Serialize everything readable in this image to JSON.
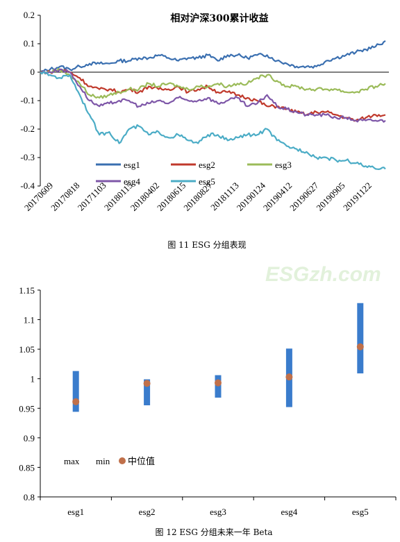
{
  "watermark": "ESGzh.com",
  "chart_data": [
    {
      "type": "line",
      "title": "相对沪深300累计收益",
      "caption": "图 11 ESG 分组表现",
      "ylim": [
        -0.4,
        0.2
      ],
      "yticks": [
        "0.2",
        "0.1",
        "0",
        "-0.1",
        "-0.2",
        "-0.3",
        "-0.4"
      ],
      "xticks": [
        "20170609",
        "20170818",
        "20171103",
        "20180115",
        "20180402",
        "20180615",
        "20180827",
        "20181113",
        "20190124",
        "20190412",
        "20190627",
        "20190905",
        "20191122"
      ],
      "grid": false,
      "legend_position": "bottom",
      "series": [
        {
          "name": "esg1",
          "color": "#3a6fb0",
          "values": [
            0.0,
            0.01,
            0.02,
            0.01,
            0.02,
            0.03,
            0.03,
            0.03,
            0.04,
            0.04,
            0.05,
            0.05,
            0.06,
            0.05,
            0.04,
            0.05,
            0.05,
            0.06,
            0.04,
            0.06,
            0.06,
            0.05,
            0.06,
            0.06,
            0.04,
            0.03,
            0.02,
            0.02,
            0.02,
            0.04,
            0.05,
            0.06,
            0.07,
            0.08,
            0.09,
            0.11
          ]
        },
        {
          "name": "esg2",
          "color": "#c0392b",
          "values": [
            0.0,
            0.0,
            0.01,
            0.0,
            -0.02,
            -0.05,
            -0.06,
            -0.06,
            -0.07,
            -0.06,
            -0.07,
            -0.05,
            -0.06,
            -0.06,
            -0.05,
            -0.07,
            -0.06,
            -0.05,
            -0.07,
            -0.07,
            -0.08,
            -0.09,
            -0.1,
            -0.12,
            -0.12,
            -0.13,
            -0.14,
            -0.15,
            -0.14,
            -0.14,
            -0.15,
            -0.16,
            -0.17,
            -0.16,
            -0.15,
            -0.15
          ]
        },
        {
          "name": "esg3",
          "color": "#9bbb59",
          "values": [
            0.0,
            0.0,
            0.01,
            -0.01,
            -0.04,
            -0.08,
            -0.09,
            -0.08,
            -0.07,
            -0.06,
            -0.06,
            -0.04,
            -0.05,
            -0.04,
            -0.05,
            -0.06,
            -0.05,
            -0.05,
            -0.04,
            -0.05,
            -0.04,
            -0.04,
            -0.02,
            -0.01,
            -0.03,
            -0.05,
            -0.05,
            -0.06,
            -0.06,
            -0.06,
            -0.06,
            -0.07,
            -0.07,
            -0.06,
            -0.05,
            -0.04
          ]
        },
        {
          "name": "esg4",
          "color": "#7e57a8",
          "values": [
            0.0,
            0.0,
            0.01,
            0.0,
            -0.05,
            -0.1,
            -0.12,
            -0.11,
            -0.1,
            -0.1,
            -0.12,
            -0.11,
            -0.1,
            -0.11,
            -0.09,
            -0.1,
            -0.1,
            -0.09,
            -0.11,
            -0.1,
            -0.09,
            -0.12,
            -0.11,
            -0.08,
            -0.12,
            -0.13,
            -0.14,
            -0.15,
            -0.15,
            -0.15,
            -0.16,
            -0.16,
            -0.17,
            -0.17,
            -0.17,
            -0.17
          ]
        },
        {
          "name": "esg5",
          "color": "#4bacc6",
          "values": [
            0.0,
            -0.01,
            -0.02,
            -0.01,
            -0.08,
            -0.15,
            -0.22,
            -0.21,
            -0.25,
            -0.2,
            -0.19,
            -0.22,
            -0.21,
            -0.23,
            -0.22,
            -0.24,
            -0.25,
            -0.22,
            -0.22,
            -0.24,
            -0.23,
            -0.22,
            -0.22,
            -0.2,
            -0.24,
            -0.26,
            -0.27,
            -0.28,
            -0.3,
            -0.3,
            -0.31,
            -0.31,
            -0.32,
            -0.33,
            -0.34,
            -0.34
          ]
        }
      ]
    },
    {
      "type": "bar",
      "caption": "图 12 ESG 分组未来一年 Beta",
      "ylim": [
        0.8,
        1.15
      ],
      "yticks": [
        "1.15",
        "1.1",
        "1.05",
        "1",
        "0.95",
        "0.9",
        "0.85",
        "0.8"
      ],
      "categories": [
        "esg1",
        "esg2",
        "esg3",
        "esg4",
        "esg5"
      ],
      "max": [
        1.013,
        0.999,
        1.006,
        1.051,
        1.128
      ],
      "min": [
        0.944,
        0.955,
        0.968,
        0.952,
        1.009
      ],
      "median": [
        0.961,
        0.992,
        0.993,
        1.003,
        1.054
      ],
      "legend": [
        "max",
        "min",
        "中位值"
      ],
      "bar_color": "#3a7ccc",
      "median_color": "#c0704a"
    }
  ]
}
